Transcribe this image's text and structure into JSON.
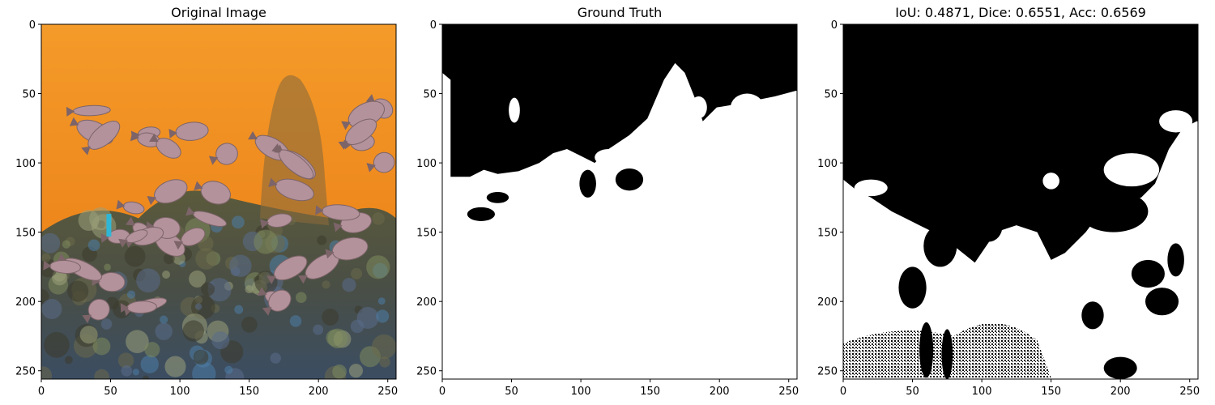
{
  "figure": {
    "background": "#ffffff",
    "colors": {
      "sky_top": "#f49b2a",
      "sky_bottom": "#e97812",
      "reef_dark": "#3d3a2c",
      "reef_mid": "#6b6a4a",
      "reef_blue": "#4d7ea8",
      "fish": "#b3929b",
      "fish_dark": "#7c6469",
      "mask_foreground": "#ffffff",
      "mask_background": "#000000"
    }
  },
  "chart_data": [
    {
      "type": "image",
      "title": "Original Image",
      "content": "underwater coral reef with a school of fish",
      "xlim": [
        0,
        255
      ],
      "ylim": [
        255,
        0
      ],
      "xticks": [
        0,
        50,
        100,
        150,
        200,
        250
      ],
      "yticks": [
        0,
        50,
        100,
        150,
        200,
        250
      ]
    },
    {
      "type": "heatmap",
      "title": "Ground Truth",
      "colormap": "binary (0 = black, 1 = white)",
      "xlim": [
        0,
        255
      ],
      "ylim": [
        255,
        0
      ],
      "xticks": [
        0,
        50,
        100,
        150,
        200,
        250
      ],
      "yticks": [
        0,
        50,
        100,
        150,
        200,
        250
      ],
      "boundary": [
        [
          0,
          35
        ],
        [
          6,
          40
        ],
        [
          6,
          110
        ],
        [
          20,
          110
        ],
        [
          30,
          105
        ],
        [
          40,
          108
        ],
        [
          55,
          106
        ],
        [
          70,
          100
        ],
        [
          80,
          93
        ],
        [
          90,
          90
        ],
        [
          100,
          95
        ],
        [
          110,
          100
        ],
        [
          120,
          90
        ],
        [
          135,
          80
        ],
        [
          148,
          68
        ],
        [
          160,
          40
        ],
        [
          168,
          28
        ],
        [
          175,
          35
        ],
        [
          183,
          55
        ],
        [
          188,
          70
        ],
        [
          198,
          60
        ],
        [
          210,
          58
        ],
        [
          225,
          55
        ],
        [
          240,
          52
        ],
        [
          255,
          48
        ]
      ]
    },
    {
      "type": "heatmap",
      "title": "IoU: 0.4871, Dice: 0.6551, Acc: 0.6569",
      "colormap": "binary (0 = black, 1 = white)",
      "metrics": {
        "IoU": 0.4871,
        "Dice": 0.6551,
        "Acc": 0.6569
      },
      "xlim": [
        0,
        255
      ],
      "ylim": [
        255,
        0
      ],
      "xticks": [
        0,
        50,
        100,
        150,
        200,
        250
      ],
      "yticks": [
        0,
        50,
        100,
        150,
        200,
        250
      ],
      "boundary": [
        [
          0,
          112
        ],
        [
          10,
          120
        ],
        [
          20,
          125
        ],
        [
          35,
          135
        ],
        [
          45,
          140
        ],
        [
          55,
          145
        ],
        [
          65,
          150
        ],
        [
          80,
          160
        ],
        [
          95,
          172
        ],
        [
          110,
          150
        ],
        [
          125,
          145
        ],
        [
          140,
          150
        ],
        [
          150,
          170
        ],
        [
          160,
          165
        ],
        [
          175,
          150
        ],
        [
          190,
          130
        ],
        [
          200,
          128
        ],
        [
          215,
          125
        ],
        [
          225,
          115
        ],
        [
          235,
          90
        ],
        [
          245,
          75
        ],
        [
          255,
          70
        ]
      ]
    }
  ]
}
